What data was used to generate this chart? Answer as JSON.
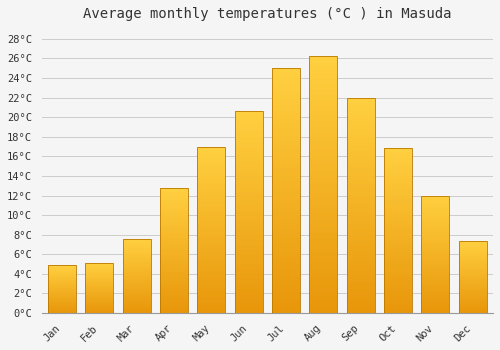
{
  "title": "Average monthly temperatures (°C ) in Masuda",
  "months": [
    "Jan",
    "Feb",
    "Mar",
    "Apr",
    "May",
    "Jun",
    "Jul",
    "Aug",
    "Sep",
    "Oct",
    "Nov",
    "Dec"
  ],
  "temperatures": [
    4.9,
    5.1,
    7.6,
    12.8,
    17.0,
    20.6,
    25.0,
    26.2,
    22.0,
    16.9,
    12.0,
    7.4
  ],
  "bar_color_bottom": "#E8960A",
  "bar_color_top": "#FFD040",
  "bar_edge_color": "#B87800",
  "background_color": "#F5F5F5",
  "plot_bg_color": "#F5F5F5",
  "grid_color": "#CCCCCC",
  "text_color": "#333333",
  "ylim": [
    0,
    29
  ],
  "yticks": [
    0,
    2,
    4,
    6,
    8,
    10,
    12,
    14,
    16,
    18,
    20,
    22,
    24,
    26,
    28
  ],
  "title_fontsize": 10,
  "tick_fontsize": 7.5,
  "font_family": "monospace",
  "bar_width": 0.75
}
